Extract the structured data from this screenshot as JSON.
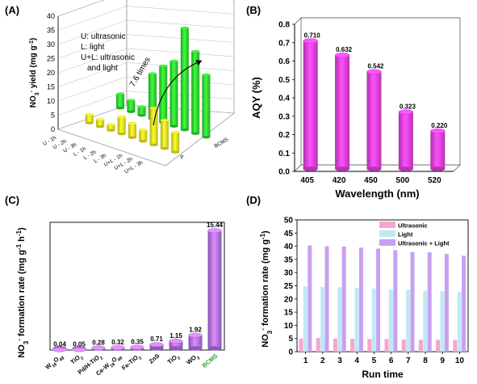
{
  "chart_data": [
    {
      "panel_label": "(A)",
      "type": "bar",
      "ylabel_main": "NO",
      "ylabel_sub": "3",
      "ylabel_sup": "-",
      "ylabel_rest": " yield (mg g",
      "ylabel_sup2": "-1",
      "ylabel_end": ")",
      "yticks": [
        0,
        5,
        10,
        15,
        20,
        25,
        30,
        35,
        40
      ],
      "ylim": [
        0,
        40
      ],
      "legend_lines": [
        "U: ultrasonic",
        "L: light",
        "U+L: ultrasonic",
        "and light"
      ],
      "annotation": "7.6 times",
      "row_labels": [
        "U - 1h",
        "U - 2h",
        "U - 3h",
        "L - 1h",
        "L - 2h",
        "L - 3h",
        "U+L - 1h",
        "U+L - 2h",
        "U+L - 3h"
      ],
      "materials": [
        "P",
        "BCMS"
      ],
      "series": [
        {
          "name": "P",
          "values": [
            3,
            2.5,
            2,
            6,
            5,
            4,
            13,
            10,
            7
          ]
        },
        {
          "name": "BCMS",
          "values": [
            5,
            4,
            3,
            16,
            20,
            23,
            36,
            29,
            22
          ]
        }
      ],
      "colors": {
        "P": "#e8e620",
        "BCMS": "#2fd42f"
      }
    },
    {
      "panel_label": "(B)",
      "type": "bar",
      "xlabel": "Wavelength (nm)",
      "ylabel": "AQY (%)",
      "categories": [
        "405",
        "420",
        "450",
        "500",
        "520"
      ],
      "values": [
        0.71,
        0.632,
        0.542,
        0.323,
        0.22
      ],
      "value_labels": [
        "0.710",
        "0.632",
        "0.542",
        "0.323",
        "0.220"
      ],
      "ylim": [
        0.0,
        0.8
      ],
      "yticks": [
        "0.0",
        "0.1",
        "0.2",
        "0.3",
        "0.4",
        "0.5",
        "0.6",
        "0.7",
        "0.8"
      ],
      "bar_color": "#e640e0"
    },
    {
      "panel_label": "(C)",
      "type": "bar",
      "ylabel_parts": [
        "NO",
        "3",
        "-",
        " formation rate (mg g",
        "-1",
        " h",
        "-1",
        ")"
      ],
      "categories": [
        {
          "base": "W",
          "sub": "18",
          "tail": "O",
          "sub2": "49"
        },
        {
          "base": "TiO",
          "sub": "2",
          "tail": "",
          "sub2": ""
        },
        {
          "base": "Pd/H-TiO",
          "sub": "2",
          "tail": "",
          "sub2": ""
        },
        {
          "base": "Ce-W",
          "sub": "18",
          "tail": "O",
          "sub2": "49"
        },
        {
          "base": "Fe-TiO",
          "sub": "2",
          "tail": "",
          "sub2": ""
        },
        {
          "base": "ZnS",
          "sub": "",
          "tail": "",
          "sub2": ""
        },
        {
          "base": "TiO",
          "sub": "2",
          "tail": "",
          "sub2": ""
        },
        {
          "base": "WO",
          "sub": "3",
          "tail": "",
          "sub2": ""
        },
        {
          "base": "BCMS",
          "sub": "",
          "tail": "",
          "sub2": ""
        }
      ],
      "values": [
        0.04,
        0.05,
        0.28,
        0.32,
        0.35,
        0.71,
        1.15,
        1.92,
        15.44
      ],
      "value_labels": [
        "0.04",
        "0.05",
        "0.28",
        "0.32",
        "0.35",
        "0.71",
        "1.15",
        "1.92",
        "15.44"
      ],
      "ylim": [
        0,
        16.5
      ],
      "bar_color": "#b070e8",
      "highlight_color": "#2aa02a"
    },
    {
      "panel_label": "(D)",
      "type": "bar",
      "xlabel": "Run time",
      "ylabel_parts": [
        "NO",
        "3",
        "-",
        " formation rate (mg g",
        "-1",
        ")"
      ],
      "categories": [
        "1",
        "2",
        "3",
        "4",
        "5",
        "6",
        "7",
        "8",
        "9",
        "10"
      ],
      "yticks": [
        0,
        5,
        10,
        15,
        20,
        25,
        30,
        35,
        40,
        45,
        50
      ],
      "ylim": [
        0,
        50
      ],
      "series": [
        {
          "name": "Ultrasonic",
          "values": [
            5.0,
            5.2,
            5.0,
            4.9,
            4.8,
            4.8,
            4.6,
            4.5,
            4.5,
            4.4
          ],
          "color": "#f4a6d0"
        },
        {
          "name": "Light",
          "values": [
            24.8,
            24.6,
            24.5,
            24.2,
            24.0,
            23.5,
            23.5,
            23.2,
            22.9,
            22.6
          ],
          "color": "#bfe8f4"
        },
        {
          "name": "Ultrasonic + Light",
          "values": [
            40.3,
            40.0,
            39.9,
            39.5,
            39.1,
            38.5,
            37.8,
            37.7,
            37.1,
            36.4
          ],
          "color": "#c8a0f0"
        }
      ],
      "legend_position": "top-right"
    }
  ]
}
